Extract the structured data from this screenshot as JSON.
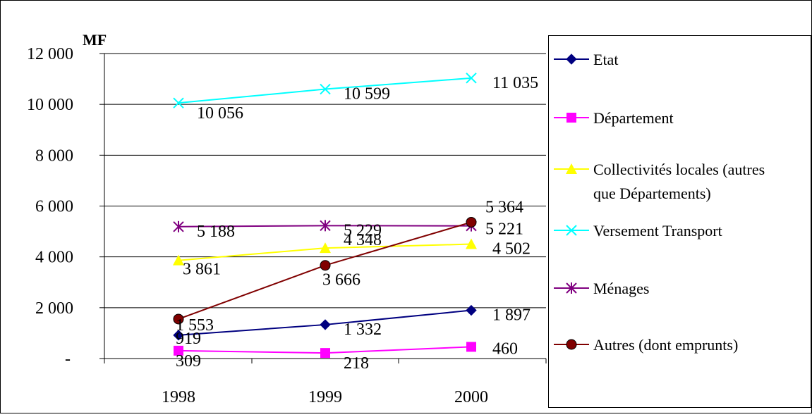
{
  "chart_data": {
    "type": "line",
    "ylabel": "MF",
    "x": [
      "1998",
      "1999",
      "2000"
    ],
    "ylim": [
      0,
      12000
    ],
    "yticks": [
      {
        "value": 0,
        "label": "-"
      },
      {
        "value": 2000,
        "label": "2 000"
      },
      {
        "value": 4000,
        "label": "4 000"
      },
      {
        "value": 6000,
        "label": "6 000"
      },
      {
        "value": 8000,
        "label": "8 000"
      },
      {
        "value": 10000,
        "label": "10 000"
      },
      {
        "value": 12000,
        "label": "12 000"
      }
    ],
    "grid": "horizontal",
    "legend_position": "right",
    "series": [
      {
        "name": "Etat",
        "color": "#000080",
        "marker": "diamond",
        "values": [
          919,
          1332,
          1897
        ],
        "labels": [
          "919",
          "1 332",
          "1 897"
        ]
      },
      {
        "name": "Département",
        "color": "#ff00ff",
        "marker": "square",
        "values": [
          309,
          218,
          460
        ],
        "labels": [
          "309",
          "218",
          "460"
        ]
      },
      {
        "name": "Collectivités locales (autres que Départements)",
        "color": "#ffff00",
        "marker": "triangle",
        "legend_lines": [
          "Collectivités locales (autres",
          "que Départements)"
        ],
        "values": [
          3861,
          4348,
          4502
        ],
        "labels": [
          "3 861",
          "4 348",
          "4 502"
        ]
      },
      {
        "name": "Versement Transport",
        "color": "#00ffff",
        "marker": "x",
        "values": [
          10056,
          10599,
          11035
        ],
        "labels": [
          "10 056",
          "10 599",
          "11 035"
        ]
      },
      {
        "name": "Ménages",
        "color": "#800080",
        "marker": "star",
        "values": [
          5188,
          5229,
          5221
        ],
        "labels": [
          "5 188",
          "5 229",
          "5 221"
        ]
      },
      {
        "name": "Autres (dont emprunts)",
        "color": "#800000",
        "marker": "circle",
        "values": [
          1553,
          3666,
          5364
        ],
        "labels": [
          "1 553",
          "3 666",
          "5 364"
        ]
      }
    ]
  }
}
